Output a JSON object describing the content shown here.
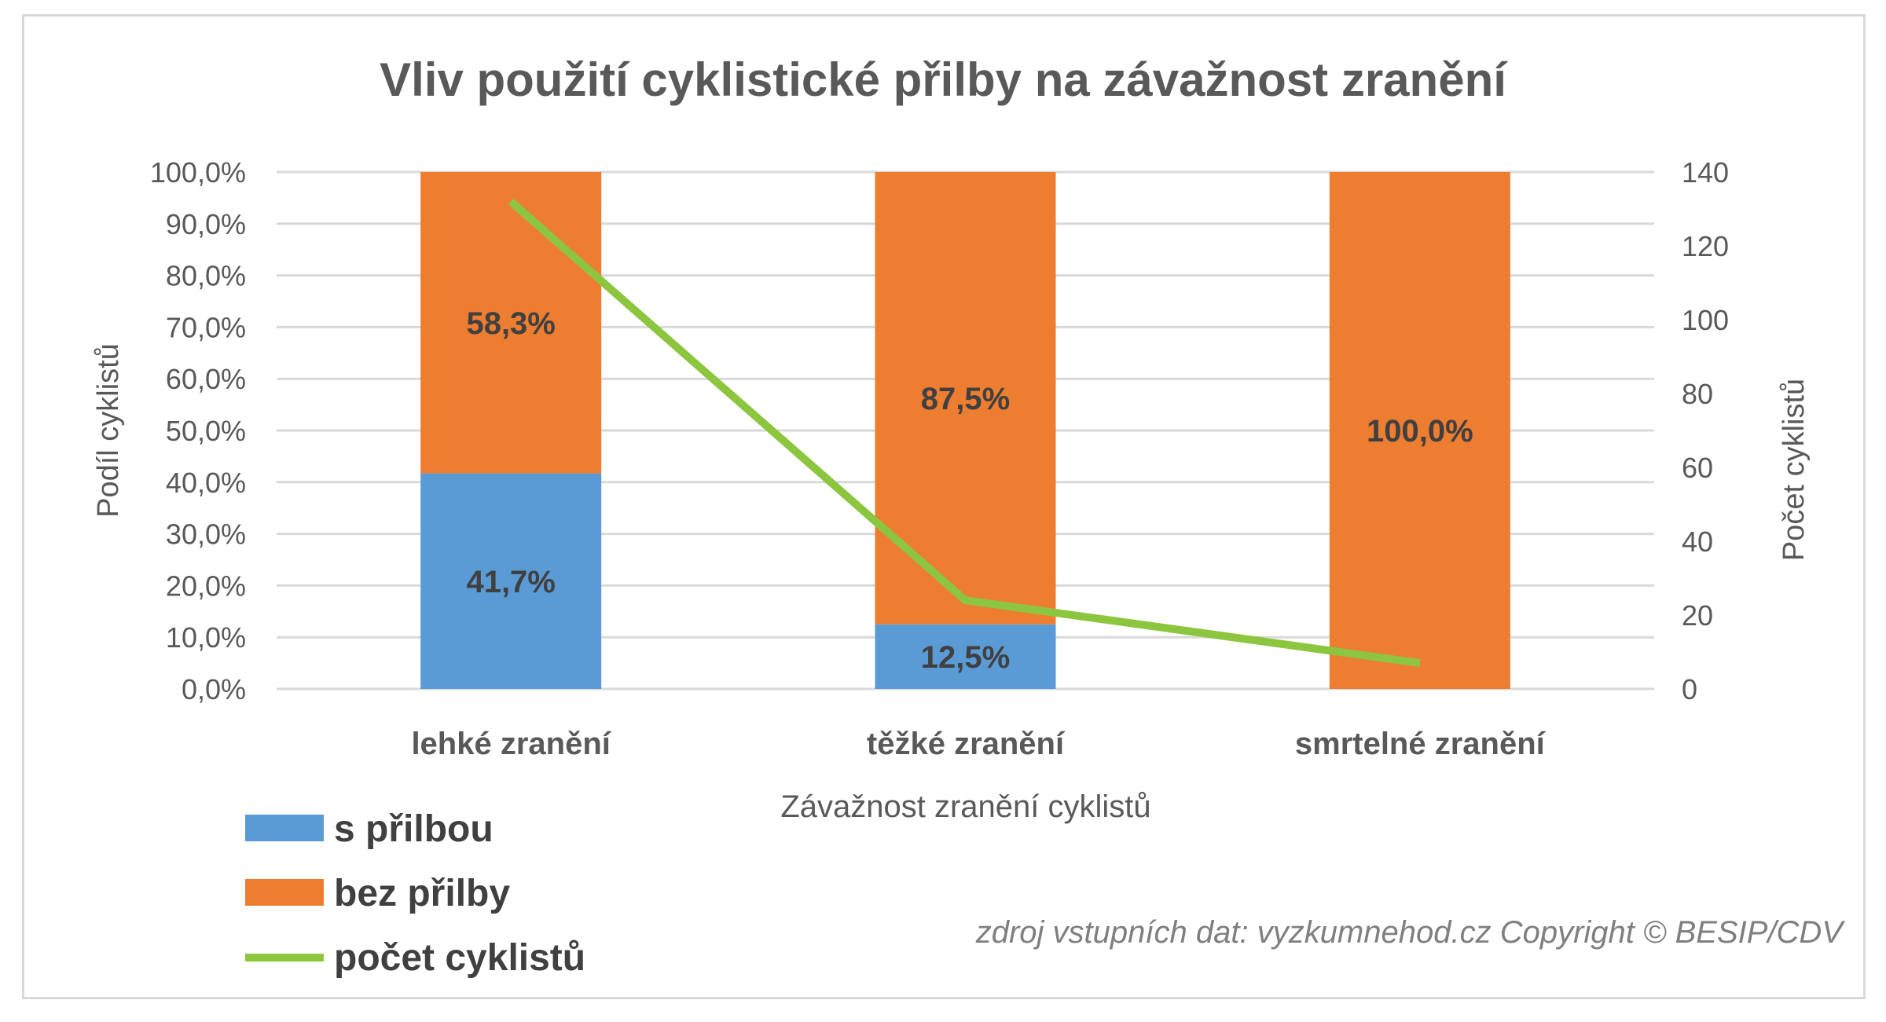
{
  "chart_data": {
    "type": "bar",
    "stacked": true,
    "percent_stacked": true,
    "title": "Vliv použití cyklistické přilby na závažnost zranění",
    "xlabel": "Závažnost zranění cyklistů",
    "ylabel": "Podíl cyklistů",
    "y2label": "Počet cyklistů",
    "categories": [
      "lehké zranění",
      "těžké zranění",
      "smrtelné zranění"
    ],
    "ylim": [
      0,
      100
    ],
    "yticks": [
      "0,0%",
      "10,0%",
      "20,0%",
      "30,0%",
      "40,0%",
      "50,0%",
      "60,0%",
      "70,0%",
      "80,0%",
      "90,0%",
      "100,0%"
    ],
    "y2lim": [
      0,
      140
    ],
    "y2ticks": [
      "0",
      "20",
      "40",
      "60",
      "80",
      "100",
      "120",
      "140"
    ],
    "grid": true,
    "legend_position": "bottom-left",
    "series": [
      {
        "name": "s přilbou",
        "type": "bar",
        "axis": "left",
        "color": "#5b9bd5",
        "values": [
          41.7,
          12.5,
          0
        ],
        "labels": [
          "41,7%",
          "12,5%",
          ""
        ]
      },
      {
        "name": "bez přilby",
        "type": "bar",
        "axis": "left",
        "color": "#ed7d31",
        "values": [
          58.3,
          87.5,
          100
        ],
        "labels": [
          "58,3%",
          "87,5%",
          "100,0%"
        ]
      },
      {
        "name": "počet cyklistů",
        "type": "line",
        "axis": "right",
        "color": "#8cc63f",
        "values": [
          132,
          24,
          7
        ]
      }
    ],
    "source": "zdroj vstupních dat: vyzkumnehod.cz   Copyright © BESIP/CDV"
  }
}
